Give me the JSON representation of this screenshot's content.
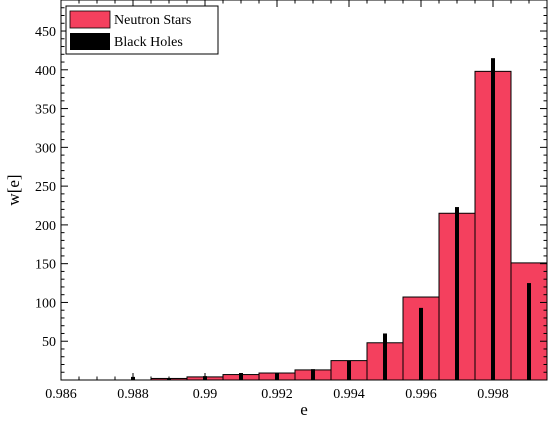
{
  "chart_data": {
    "type": "bar",
    "xlabel": "e",
    "ylabel": "w[e]",
    "xlim": [
      0.986,
      0.9995
    ],
    "ylim": [
      0,
      490
    ],
    "x_ticks": [
      0.986,
      0.988,
      0.99,
      0.992,
      0.994,
      0.996,
      0.998
    ],
    "x_tick_labels": [
      "0.986",
      "0.988",
      "0.99",
      "0.992",
      "0.994",
      "0.996",
      "0.998"
    ],
    "y_ticks": [
      50,
      100,
      150,
      200,
      250,
      300,
      350,
      400,
      450
    ],
    "y_tick_labels": [
      "50",
      "100",
      "150",
      "200",
      "250",
      "300",
      "350",
      "400",
      "450"
    ],
    "grid": false,
    "legend_position": "top-left",
    "colors": {
      "neutron": "#f4405e",
      "black_holes": "#000000"
    },
    "series": [
      {
        "name": "Neutron Stars",
        "kind": "histogram",
        "bin_width": 0.001,
        "bin_starts": [
          0.9885,
          0.9895,
          0.9905,
          0.9915,
          0.9925,
          0.9935,
          0.9945,
          0.9955,
          0.9965,
          0.9975,
          0.9985
        ],
        "values": [
          2,
          4,
          7,
          9,
          13,
          25,
          48,
          107,
          215,
          398,
          151
        ]
      },
      {
        "name": "Black Holes",
        "kind": "spike",
        "x": [
          0.988,
          0.989,
          0.99,
          0.991,
          0.992,
          0.993,
          0.994,
          0.995,
          0.996,
          0.997,
          0.998,
          0.999
        ],
        "values": [
          4,
          2,
          5,
          9,
          9,
          14,
          25,
          60,
          93,
          223,
          415,
          125
        ]
      }
    ]
  }
}
